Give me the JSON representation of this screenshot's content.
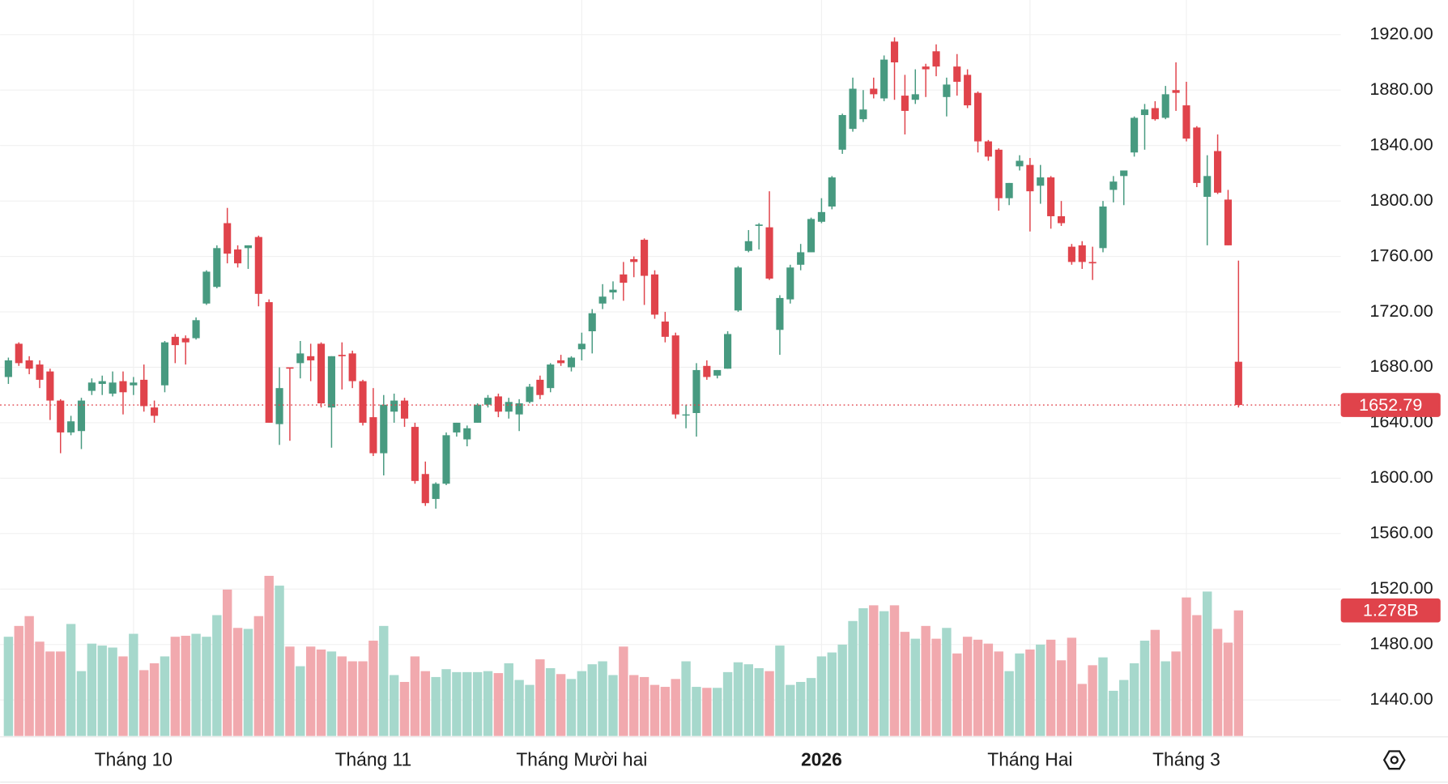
{
  "chart_data": {
    "type": "candlestick",
    "categories": [
      null,
      null,
      null,
      null,
      null,
      null,
      null,
      null,
      null,
      null,
      null,
      null,
      "Tháng 10",
      null,
      null,
      null,
      null,
      null,
      null,
      null,
      null,
      null,
      null,
      null,
      null,
      null,
      null,
      null,
      null,
      null,
      null,
      null,
      null,
      null,
      null,
      "Tháng 11",
      null,
      null,
      null,
      null,
      null,
      null,
      null,
      null,
      null,
      null,
      null,
      null,
      null,
      null,
      null,
      null,
      null,
      null,
      null,
      "Tháng Mười hai",
      null,
      null,
      null,
      null,
      null,
      null,
      null,
      null,
      null,
      null,
      null,
      null,
      null,
      null,
      null,
      null,
      null,
      null,
      null,
      null,
      null,
      null,
      "2026",
      null,
      null,
      null,
      null,
      null,
      null,
      null,
      null,
      null,
      null,
      null,
      null,
      null,
      null,
      null,
      null,
      null,
      null,
      null,
      "Tháng Hai",
      null,
      null,
      null,
      null,
      null,
      null,
      null,
      null,
      null,
      null,
      null,
      null,
      null,
      null,
      "Tháng 3",
      null,
      null,
      null,
      null,
      null
    ],
    "candles": [
      [
        1673,
        1687,
        1668,
        1685
      ],
      [
        1697,
        1698,
        1681,
        1683
      ],
      [
        1685,
        1688,
        1675,
        1679
      ],
      [
        1682,
        1685,
        1665,
        1671
      ],
      [
        1677,
        1679,
        1642,
        1656
      ],
      [
        1656,
        1657,
        1618,
        1633
      ],
      [
        1633,
        1645,
        1631,
        1641
      ],
      [
        1634,
        1658,
        1621,
        1656
      ],
      [
        1663,
        1672,
        1660,
        1669
      ],
      [
        1668,
        1674,
        1660,
        1670
      ],
      [
        1661,
        1677,
        1659,
        1669
      ],
      [
        1670,
        1677,
        1646,
        1662
      ],
      [
        1667,
        1673,
        1660,
        1669
      ],
      [
        1671,
        1682,
        1648,
        1652
      ],
      [
        1651,
        1656,
        1640,
        1645
      ],
      [
        1667,
        1699,
        1662,
        1698
      ],
      [
        1702,
        1704,
        1683,
        1696
      ],
      [
        1701,
        1703,
        1682,
        1698
      ],
      [
        1701,
        1716,
        1700,
        1714
      ],
      [
        1726,
        1750,
        1725,
        1749
      ],
      [
        1738,
        1768,
        1737,
        1766
      ],
      [
        1784,
        1795,
        1755,
        1762
      ],
      [
        1765,
        1768,
        1752,
        1755
      ],
      [
        1766,
        1768,
        1751,
        1768
      ],
      [
        1774,
        1775,
        1724,
        1733
      ],
      [
        1727,
        1729,
        1640,
        1640
      ],
      [
        1639,
        1680,
        1624,
        1665
      ],
      [
        1680,
        1680,
        1627,
        1679
      ],
      [
        1683,
        1699,
        1672,
        1690
      ],
      [
        1688,
        1697,
        1670,
        1685
      ],
      [
        1697,
        1698,
        1651,
        1654
      ],
      [
        1651,
        1688,
        1622,
        1688
      ],
      [
        1689,
        1698,
        1664,
        1688
      ],
      [
        1690,
        1692,
        1665,
        1670
      ],
      [
        1670,
        1671,
        1638,
        1640
      ],
      [
        1644,
        1665,
        1616,
        1618
      ],
      [
        1618,
        1660,
        1602,
        1653
      ],
      [
        1648,
        1661,
        1640,
        1656
      ],
      [
        1656,
        1658,
        1637,
        1643
      ],
      [
        1637,
        1640,
        1596,
        1598
      ],
      [
        1603,
        1612,
        1580,
        1582
      ],
      [
        1585,
        1597,
        1578,
        1596
      ],
      [
        1596,
        1633,
        1595,
        1631
      ],
      [
        1633,
        1640,
        1630,
        1640
      ],
      [
        1628,
        1638,
        1623,
        1636
      ],
      [
        1640,
        1654,
        1640,
        1653
      ],
      [
        1653,
        1660,
        1651,
        1658
      ],
      [
        1659,
        1661,
        1644,
        1648
      ],
      [
        1648,
        1658,
        1643,
        1655
      ],
      [
        1646,
        1657,
        1634,
        1654
      ],
      [
        1655,
        1668,
        1654,
        1666
      ],
      [
        1671,
        1674,
        1657,
        1660
      ],
      [
        1665,
        1683,
        1662,
        1682
      ],
      [
        1685,
        1689,
        1681,
        1683
      ],
      [
        1680,
        1688,
        1677,
        1687
      ],
      [
        1693,
        1705,
        1685,
        1697
      ],
      [
        1706,
        1722,
        1690,
        1719
      ],
      [
        1726,
        1740,
        1722,
        1731
      ],
      [
        1734,
        1742,
        1729,
        1736
      ],
      [
        1747,
        1756,
        1728,
        1741
      ],
      [
        1758,
        1760,
        1745,
        1756
      ],
      [
        1772,
        1773,
        1725,
        1746
      ],
      [
        1747,
        1750,
        1715,
        1718
      ],
      [
        1713,
        1720,
        1698,
        1702
      ],
      [
        1703,
        1705,
        1643,
        1646
      ],
      [
        1646,
        1653,
        1636,
        1646
      ],
      [
        1647,
        1683,
        1630,
        1678
      ],
      [
        1681,
        1685,
        1671,
        1673
      ],
      [
        1674,
        1678,
        1672,
        1678
      ],
      [
        1679,
        1706,
        1679,
        1704
      ],
      [
        1721,
        1753,
        1720,
        1752
      ],
      [
        1764,
        1779,
        1763,
        1771
      ],
      [
        1782,
        1784,
        1765,
        1783
      ],
      [
        1781,
        1807,
        1743,
        1744
      ],
      [
        1707,
        1732,
        1689,
        1730
      ],
      [
        1729,
        1754,
        1726,
        1752
      ],
      [
        1754,
        1769,
        1750,
        1763
      ],
      [
        1763,
        1788,
        1763,
        1787
      ],
      [
        1785,
        1802,
        1784,
        1792
      ],
      [
        1796,
        1818,
        1794,
        1817
      ],
      [
        1837,
        1863,
        1834,
        1862
      ],
      [
        1852,
        1889,
        1850,
        1881
      ],
      [
        1859,
        1880,
        1857,
        1866
      ],
      [
        1881,
        1889,
        1874,
        1877
      ],
      [
        1874,
        1905,
        1872,
        1902
      ],
      [
        1915,
        1918,
        1873,
        1900
      ],
      [
        1876,
        1891,
        1848,
        1865
      ],
      [
        1873,
        1895,
        1870,
        1877
      ],
      [
        1897,
        1899,
        1875,
        1895
      ],
      [
        1908,
        1913,
        1890,
        1897
      ],
      [
        1875,
        1889,
        1861,
        1884
      ],
      [
        1897,
        1906,
        1876,
        1886
      ],
      [
        1891,
        1895,
        1867,
        1869
      ],
      [
        1878,
        1879,
        1835,
        1843
      ],
      [
        1843,
        1844,
        1829,
        1832
      ],
      [
        1837,
        1838,
        1793,
        1802
      ],
      [
        1802,
        1813,
        1797,
        1813
      ],
      [
        1825,
        1833,
        1822,
        1829
      ],
      [
        1826,
        1831,
        1778,
        1807
      ],
      [
        1811,
        1826,
        1798,
        1817
      ],
      [
        1817,
        1818,
        1780,
        1789
      ],
      [
        1789,
        1800,
        1782,
        1784
      ],
      [
        1767,
        1769,
        1754,
        1756
      ],
      [
        1768,
        1771,
        1751,
        1756
      ],
      [
        1756,
        1767,
        1743,
        1755
      ],
      [
        1766,
        1800,
        1763,
        1796
      ],
      [
        1808,
        1818,
        1799,
        1814
      ],
      [
        1818,
        1822,
        1797,
        1822
      ],
      [
        1835,
        1861,
        1832,
        1860
      ],
      [
        1862,
        1870,
        1837,
        1866
      ],
      [
        1867,
        1872,
        1858,
        1859
      ],
      [
        1860,
        1883,
        1859,
        1877
      ],
      [
        1880,
        1900,
        1865,
        1878
      ],
      [
        1869,
        1886,
        1843,
        1845
      ],
      [
        1853,
        1854,
        1810,
        1813
      ],
      [
        1803,
        1833,
        1768,
        1818
      ],
      [
        1836,
        1848,
        1805,
        1806
      ],
      [
        1801,
        1808,
        1768,
        1768
      ],
      [
        1684,
        1757,
        1651,
        1652.79
      ]
    ],
    "volumes": [
      1.01,
      1.12,
      1.22,
      0.96,
      0.86,
      0.86,
      1.14,
      0.66,
      0.94,
      0.92,
      0.9,
      0.81,
      1.04,
      0.67,
      0.74,
      0.81,
      1.01,
      1.02,
      1.04,
      1.01,
      1.23,
      1.49,
      1.1,
      1.09,
      1.22,
      1.63,
      1.53,
      0.91,
      0.71,
      0.91,
      0.88,
      0.86,
      0.81,
      0.76,
      0.76,
      0.97,
      1.12,
      0.62,
      0.55,
      0.81,
      0.66,
      0.6,
      0.68,
      0.65,
      0.65,
      0.65,
      0.66,
      0.64,
      0.74,
      0.57,
      0.52,
      0.78,
      0.69,
      0.63,
      0.58,
      0.66,
      0.73,
      0.76,
      0.62,
      0.91,
      0.62,
      0.6,
      0.52,
      0.5,
      0.58,
      0.76,
      0.5,
      0.49,
      0.49,
      0.65,
      0.75,
      0.73,
      0.69,
      0.66,
      0.92,
      0.52,
      0.55,
      0.59,
      0.81,
      0.85,
      0.93,
      1.17,
      1.3,
      1.33,
      1.27,
      1.33,
      1.06,
      0.99,
      1.12,
      0.99,
      1.1,
      0.84,
      1.01,
      0.98,
      0.94,
      0.86,
      0.66,
      0.84,
      0.88,
      0.93,
      0.98,
      0.77,
      1.0,
      0.53,
      0.72,
      0.8,
      0.46,
      0.57,
      0.74,
      0.97,
      1.08,
      0.76,
      0.86,
      1.41,
      1.23,
      1.47,
      1.09,
      0.95,
      1.278
    ],
    "volume_last_label": "1.278B",
    "last_price": 1652.79,
    "ylim": [
      1414,
      1945
    ],
    "yticks": [
      {
        "value": 1440,
        "label": "1440.00"
      },
      {
        "value": 1480,
        "label": "1480.00"
      },
      {
        "value": 1520,
        "label": "1520.00"
      },
      {
        "value": 1560,
        "label": "1560.00"
      },
      {
        "value": 1600,
        "label": "1600.00"
      },
      {
        "value": 1640,
        "label": "1640.00"
      },
      {
        "value": 1680,
        "label": "1680.00"
      },
      {
        "value": 1720,
        "label": "1720.00"
      },
      {
        "value": 1760,
        "label": "1760.00"
      },
      {
        "value": 1800,
        "label": "1800.00"
      },
      {
        "value": 1840,
        "label": "1840.00"
      },
      {
        "value": 1880,
        "label": "1880.00"
      },
      {
        "value": 1920,
        "label": "1920.00"
      }
    ],
    "grid": true,
    "up_color": "#479a80",
    "down_color": "#e0434b",
    "up_volume_color": "#a6d8cc",
    "down_volume_color": "#f1a9ae"
  }
}
